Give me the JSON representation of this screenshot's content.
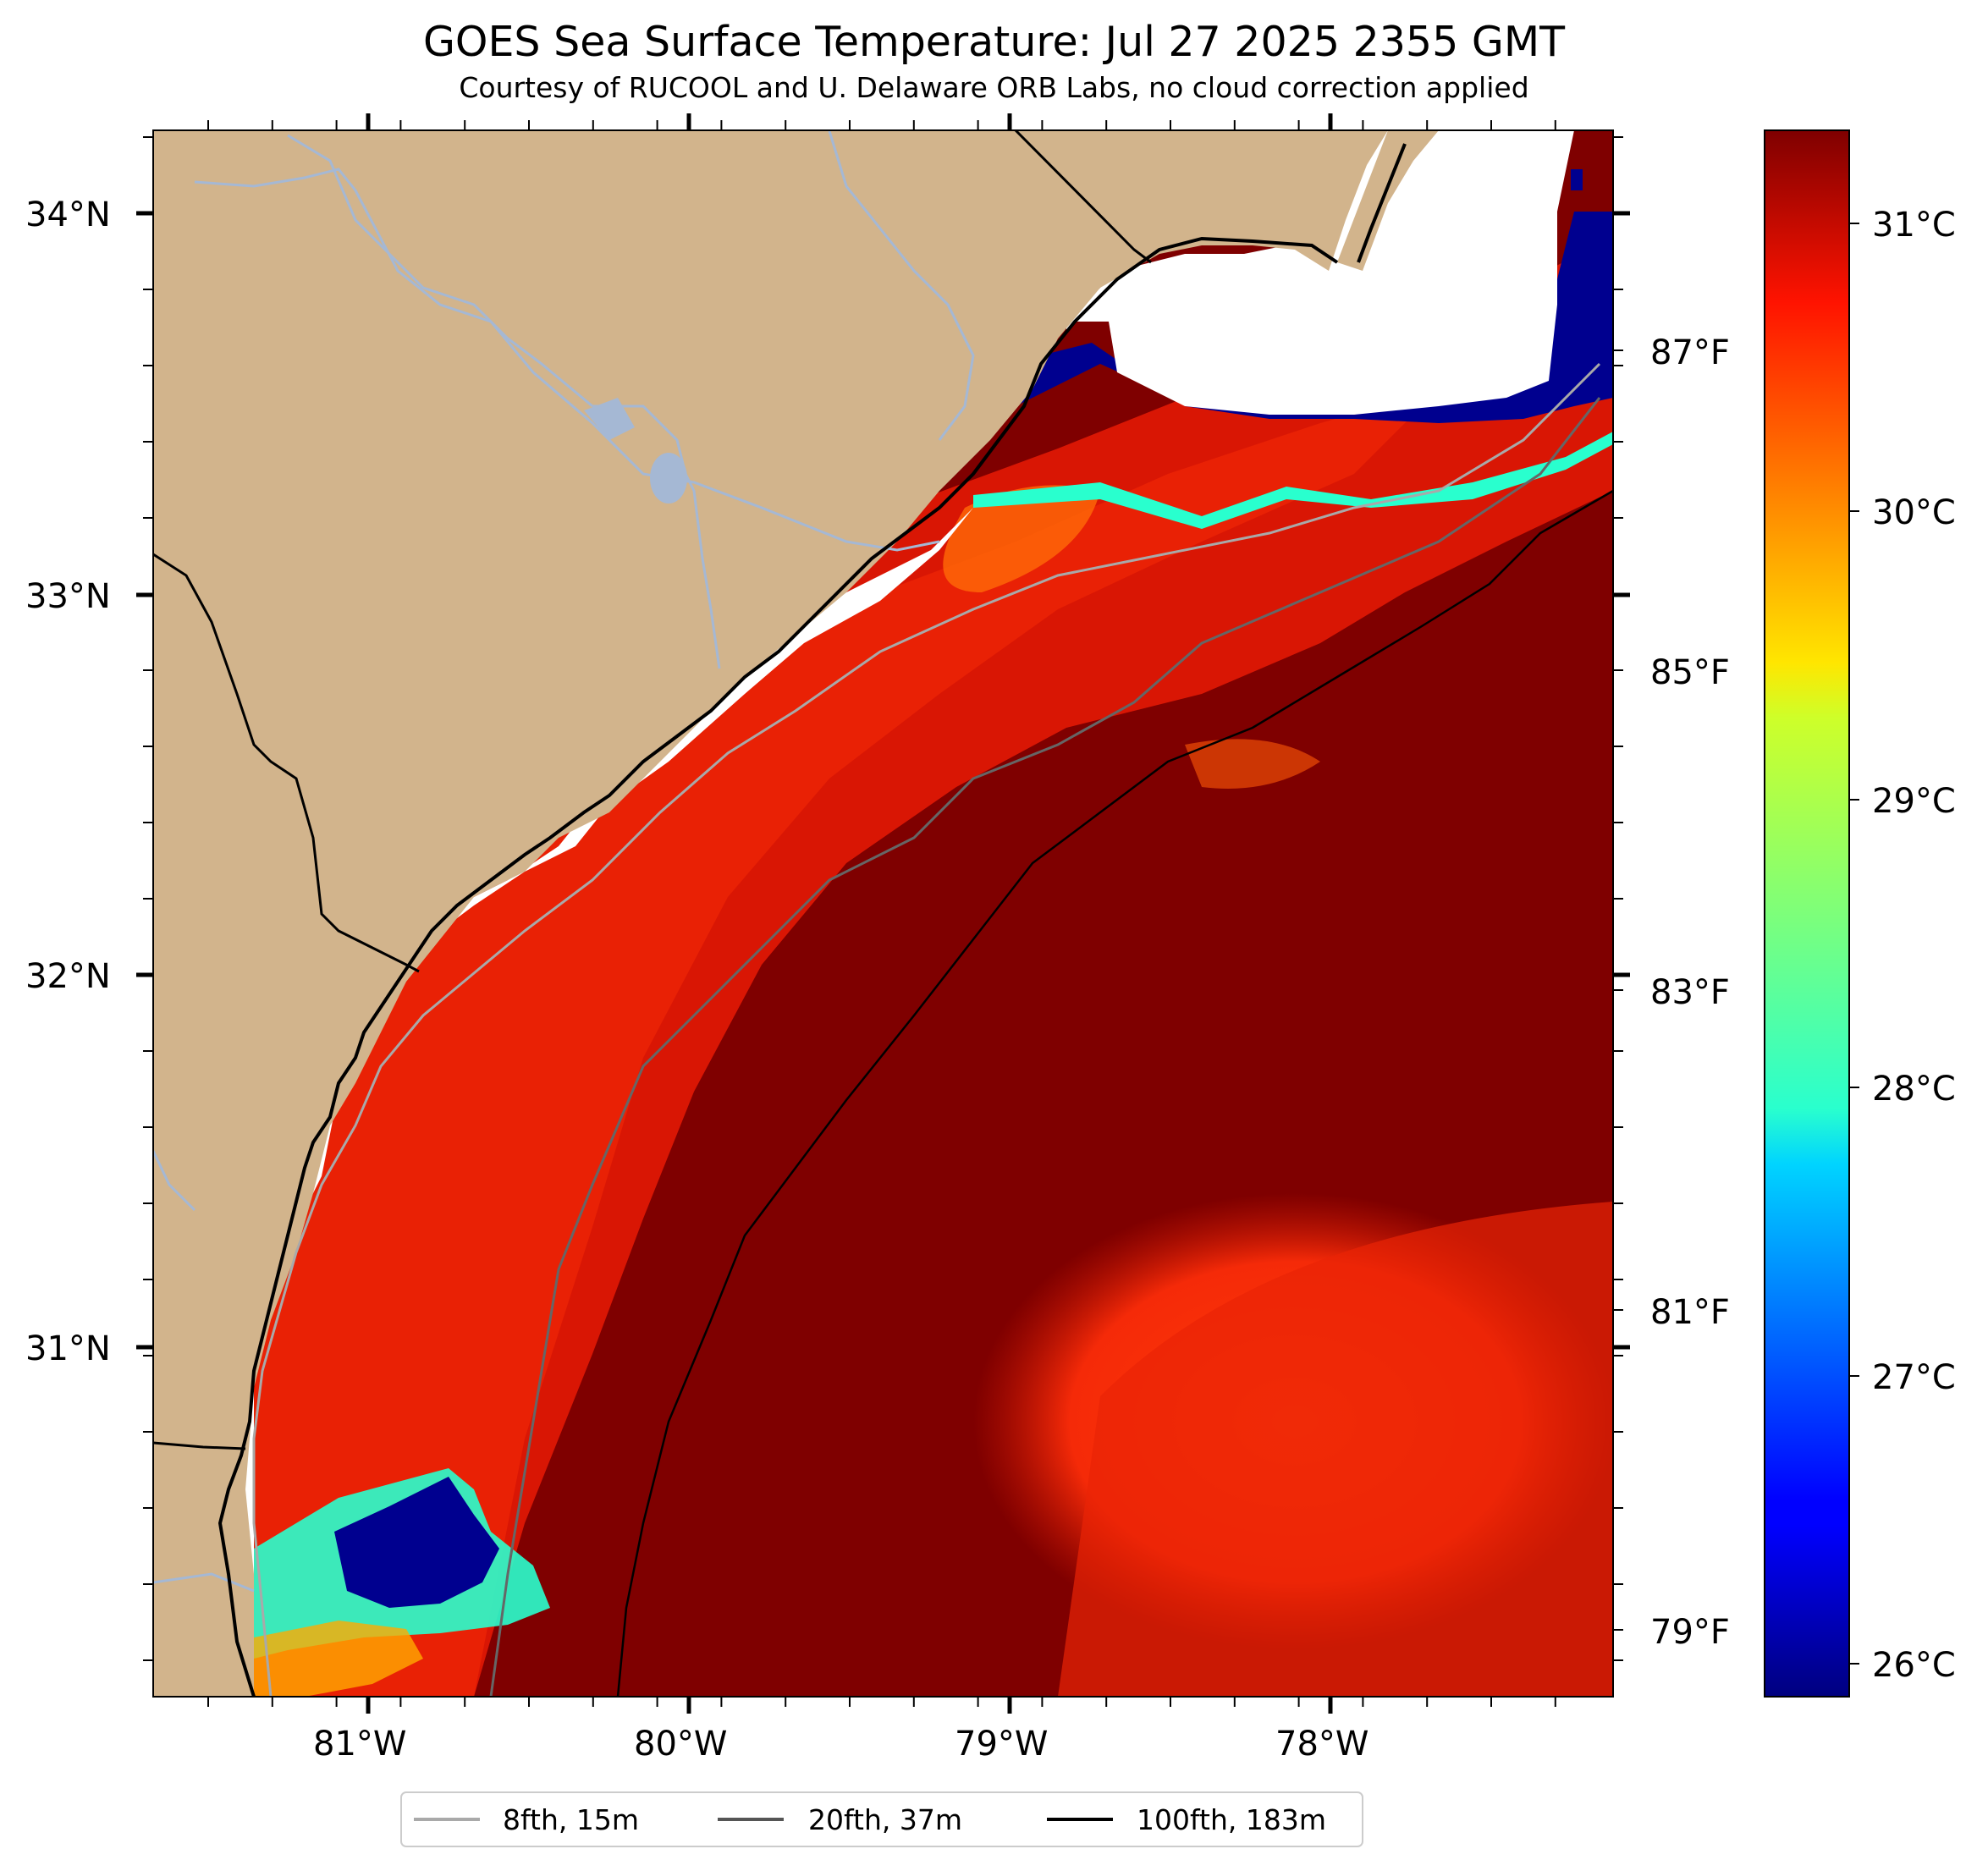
{
  "title": "GOES Sea Surface Temperature: Jul 27 2025 2355 GMT",
  "subtitle": "Courtesy of RUCOOL and U. Delaware ORB Labs, no cloud correction applied",
  "map": {
    "lat_labels": [
      "34°N",
      "33°N",
      "32°N",
      "31°N"
    ],
    "lon_labels": [
      "81°W",
      "80°W",
      "79°W",
      "78°W"
    ],
    "land_color": "#d2b48c",
    "water_line_color": "#a5b8d4"
  },
  "colorbar": {
    "colormap": "jet",
    "celsius_labels": [
      "31°C",
      "30°C",
      "29°C",
      "28°C",
      "27°C",
      "26°C"
    ],
    "fahrenheit_labels": [
      "87°F",
      "85°F",
      "83°F",
      "81°F",
      "79°F"
    ]
  },
  "legend": {
    "items": [
      {
        "label": "8fth, 15m",
        "color": "#a9a9a9"
      },
      {
        "label": "20fth, 37m",
        "color": "#555555"
      },
      {
        "label": "100fth, 183m",
        "color": "#000000"
      }
    ]
  }
}
